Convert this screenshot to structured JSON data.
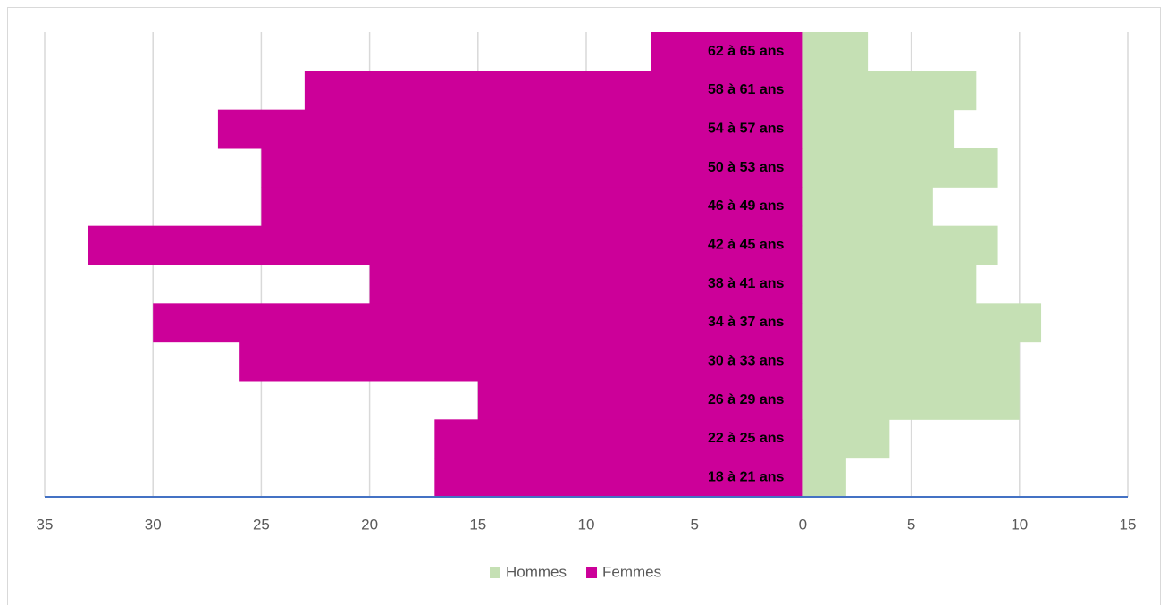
{
  "chart_data": {
    "type": "pyramid",
    "categories": [
      "18 à 21 ans",
      "22 à 25 ans",
      "26 à 29 ans",
      "30 à 33 ans",
      "34 à 37 ans",
      "38 à 41 ans",
      "42 à 45 ans",
      "46 à 49 ans",
      "50 à 53 ans",
      "54 à 57 ans",
      "58 à 61 ans",
      "62 à 65 ans"
    ],
    "series": [
      {
        "name": "Hommes",
        "color": "#c5e0b4",
        "values": [
          2,
          4,
          10,
          10,
          11,
          8,
          9,
          6,
          9,
          7,
          8,
          3
        ]
      },
      {
        "name": "Femmes",
        "color": "#cc0099",
        "values": [
          -17,
          -17,
          -15,
          -26,
          -30,
          -20,
          -33,
          -25,
          -25,
          -27,
          -23,
          -7
        ]
      }
    ],
    "xlim": [
      -35,
      15
    ],
    "xticks": [
      {
        "value": -35,
        "label": "35"
      },
      {
        "value": -30,
        "label": "30"
      },
      {
        "value": -25,
        "label": "25"
      },
      {
        "value": -20,
        "label": "20"
      },
      {
        "value": -15,
        "label": "15"
      },
      {
        "value": -10,
        "label": "10"
      },
      {
        "value": -5,
        "label": "5"
      },
      0,
      5,
      10,
      15
    ],
    "grid": true,
    "legend": "bottom"
  }
}
